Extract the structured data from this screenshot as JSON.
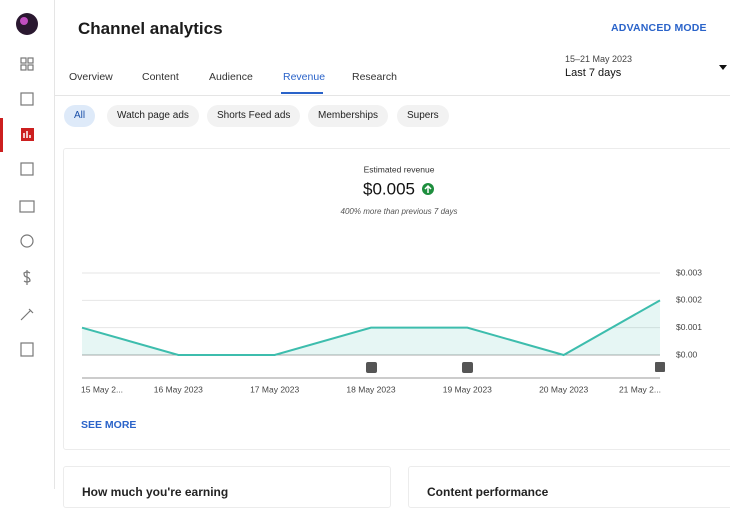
{
  "header": {
    "title": "Channel analytics",
    "advanced_mode": "ADVANCED MODE"
  },
  "tabs": [
    "Overview",
    "Content",
    "Audience",
    "Revenue",
    "Research"
  ],
  "date_range": {
    "range": "15–21 May 2023",
    "period": "Last 7 days"
  },
  "filters": [
    "All",
    "Watch page ads",
    "Shorts Feed ads",
    "Memberships",
    "Supers"
  ],
  "see_more": "SEE MORE",
  "bottom_cards": [
    "How much you're earning",
    "Content performance"
  ],
  "chart_data": {
    "type": "line",
    "title": "Estimated revenue",
    "total": "$0.005",
    "subtitle": "400% more than previous 7 days",
    "categories": [
      "15 May 2...",
      "16 May 2023",
      "17 May 2023",
      "18 May 2023",
      "19 May 2023",
      "20 May 2023",
      "21 May 2..."
    ],
    "series": [
      {
        "name": "Estimated revenue",
        "color": "#3dbdad",
        "values": [
          0.001,
          0,
          0,
          0.001,
          0.001,
          0,
          0.002
        ]
      }
    ],
    "ylim": [
      0,
      0.003
    ],
    "yticks": [
      {
        "value": 0,
        "label": "$0.00"
      },
      {
        "value": 0.001,
        "label": "$0.001"
      },
      {
        "value": 0.002,
        "label": "$0.002"
      },
      {
        "value": 0.003,
        "label": "$0.003"
      }
    ],
    "grid": true
  }
}
